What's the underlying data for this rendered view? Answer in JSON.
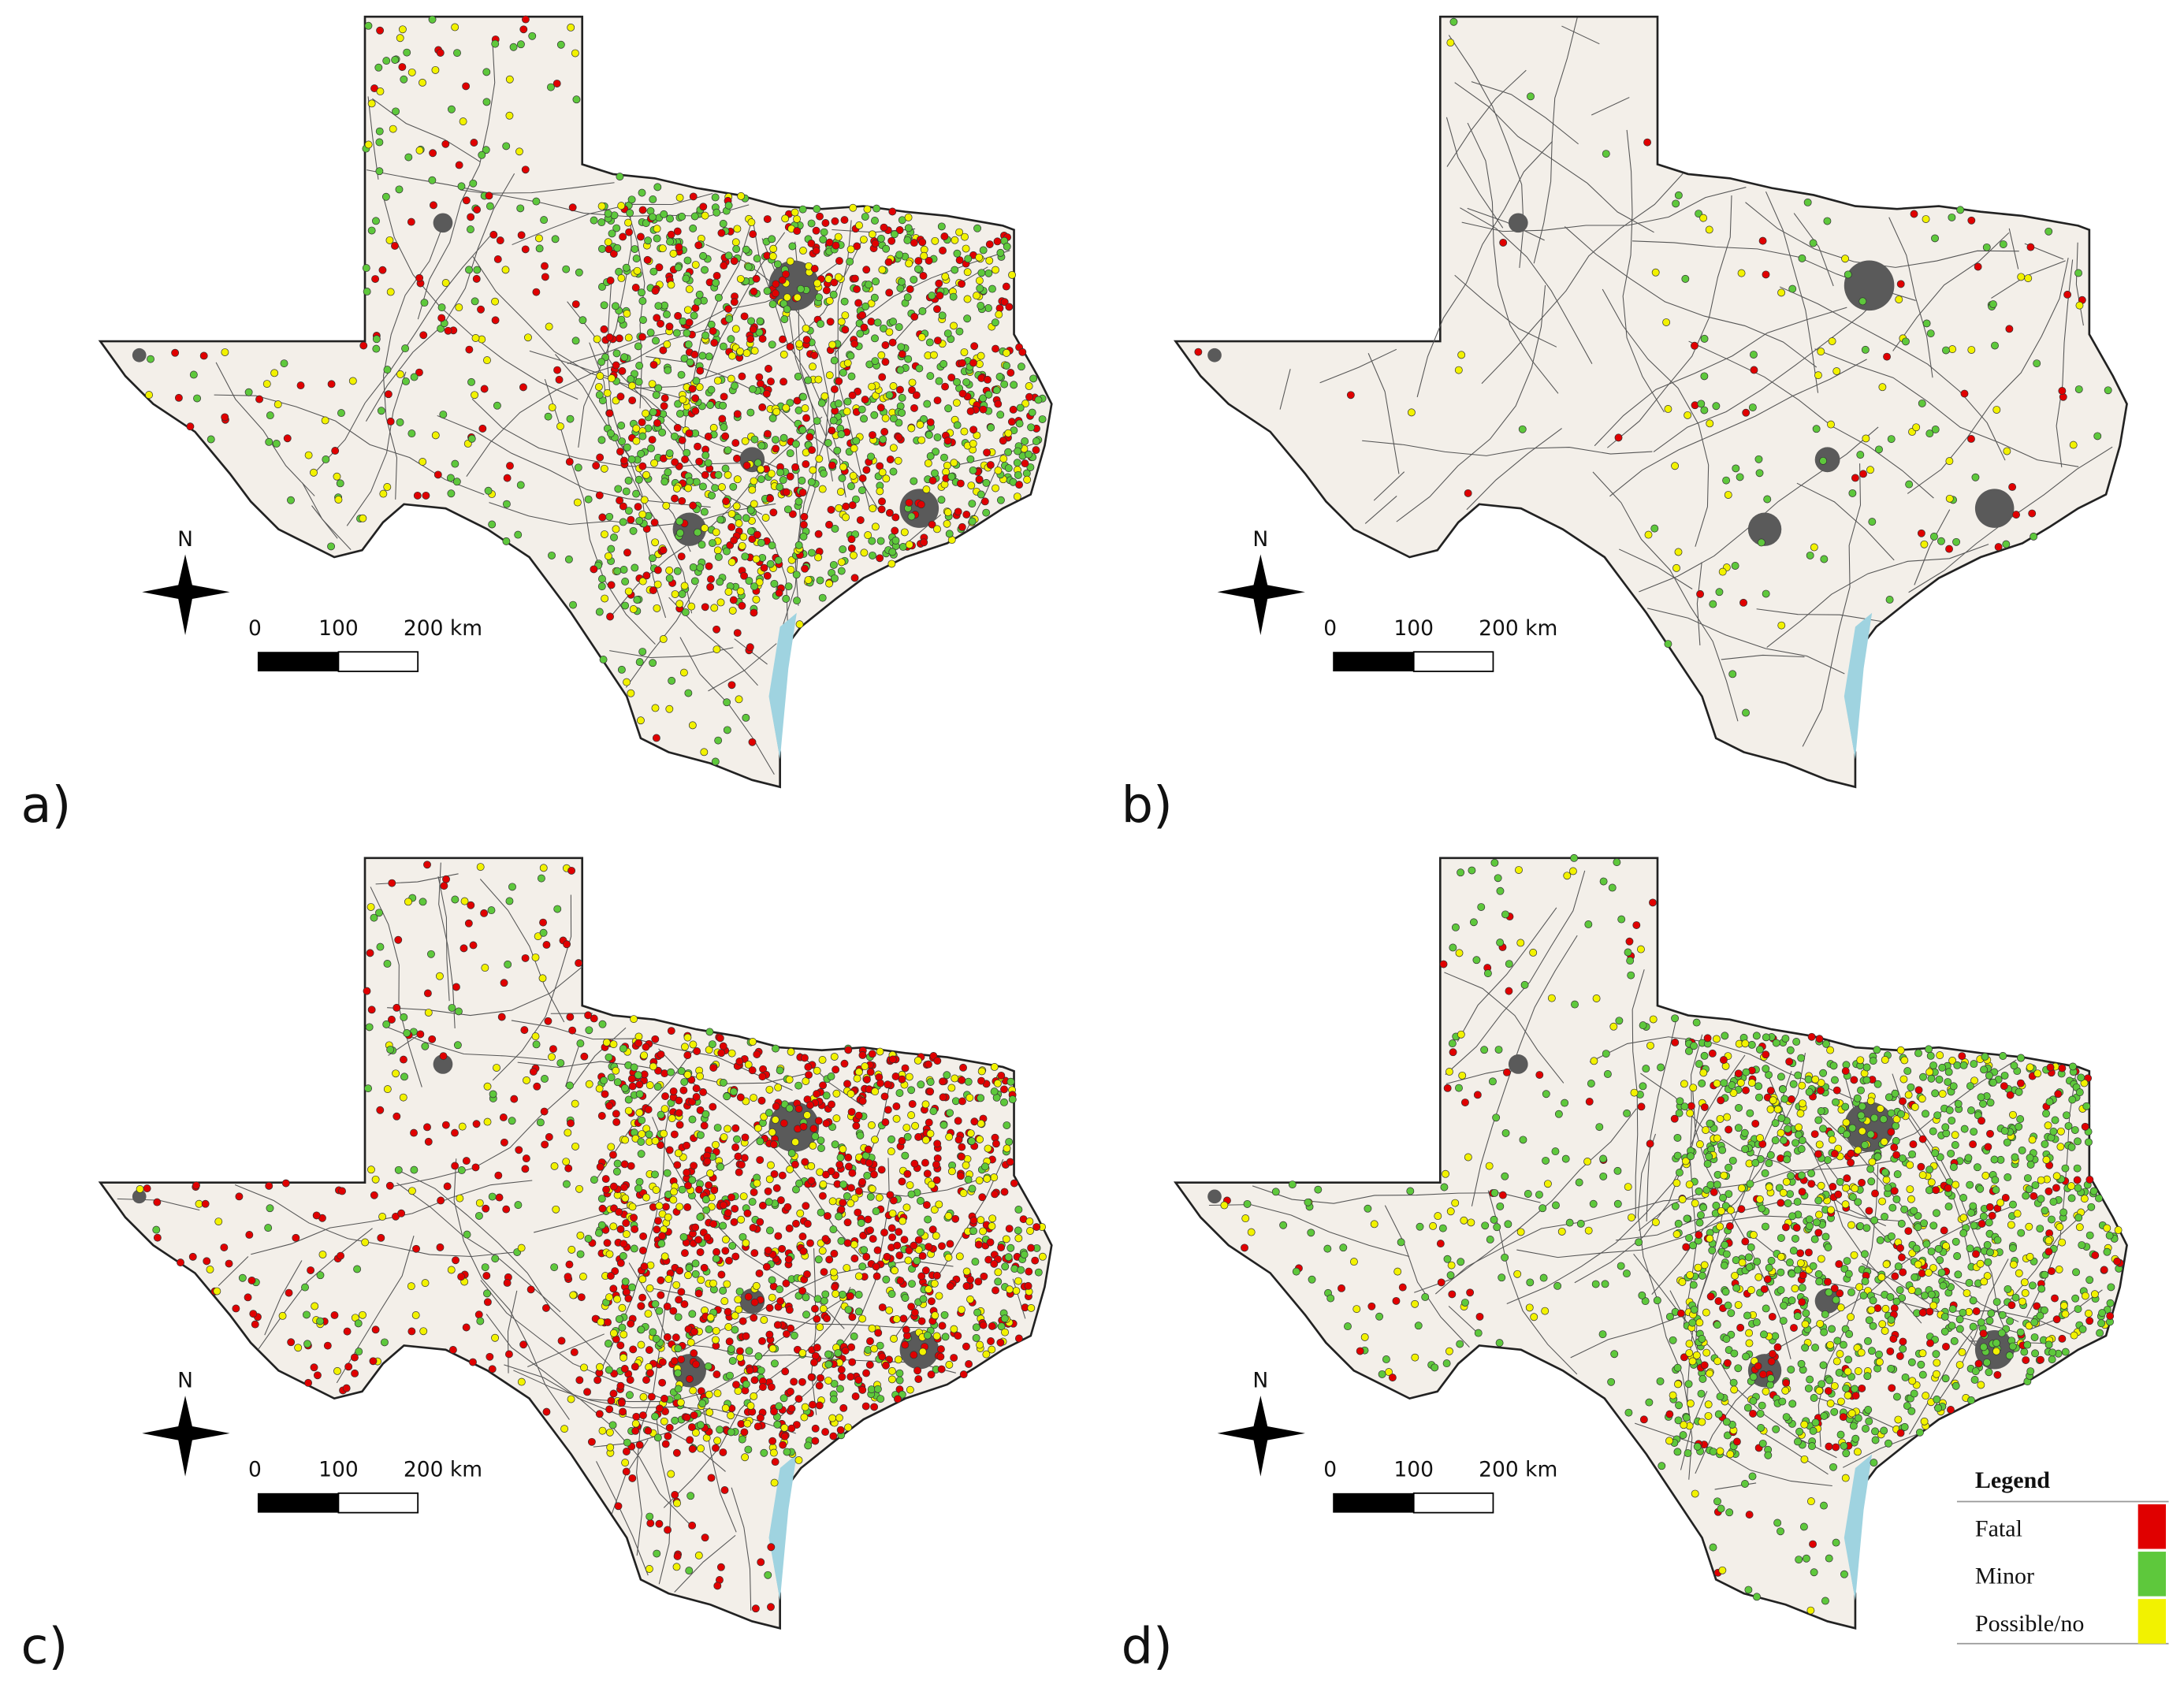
{
  "panels": [
    {
      "label": "a)"
    },
    {
      "label": "b)"
    },
    {
      "label": "c)"
    },
    {
      "label": "d)"
    }
  ],
  "compass": "N",
  "scale_bar": {
    "labels": [
      "0",
      "100",
      "200 km"
    ]
  },
  "legend": {
    "title": "Legend",
    "items": [
      {
        "label": "Fatal",
        "color": "#e00000"
      },
      {
        "label": "Minor",
        "color": "#5ec83c"
      },
      {
        "label": "Possible/no",
        "color": "#f2f200"
      }
    ]
  }
}
